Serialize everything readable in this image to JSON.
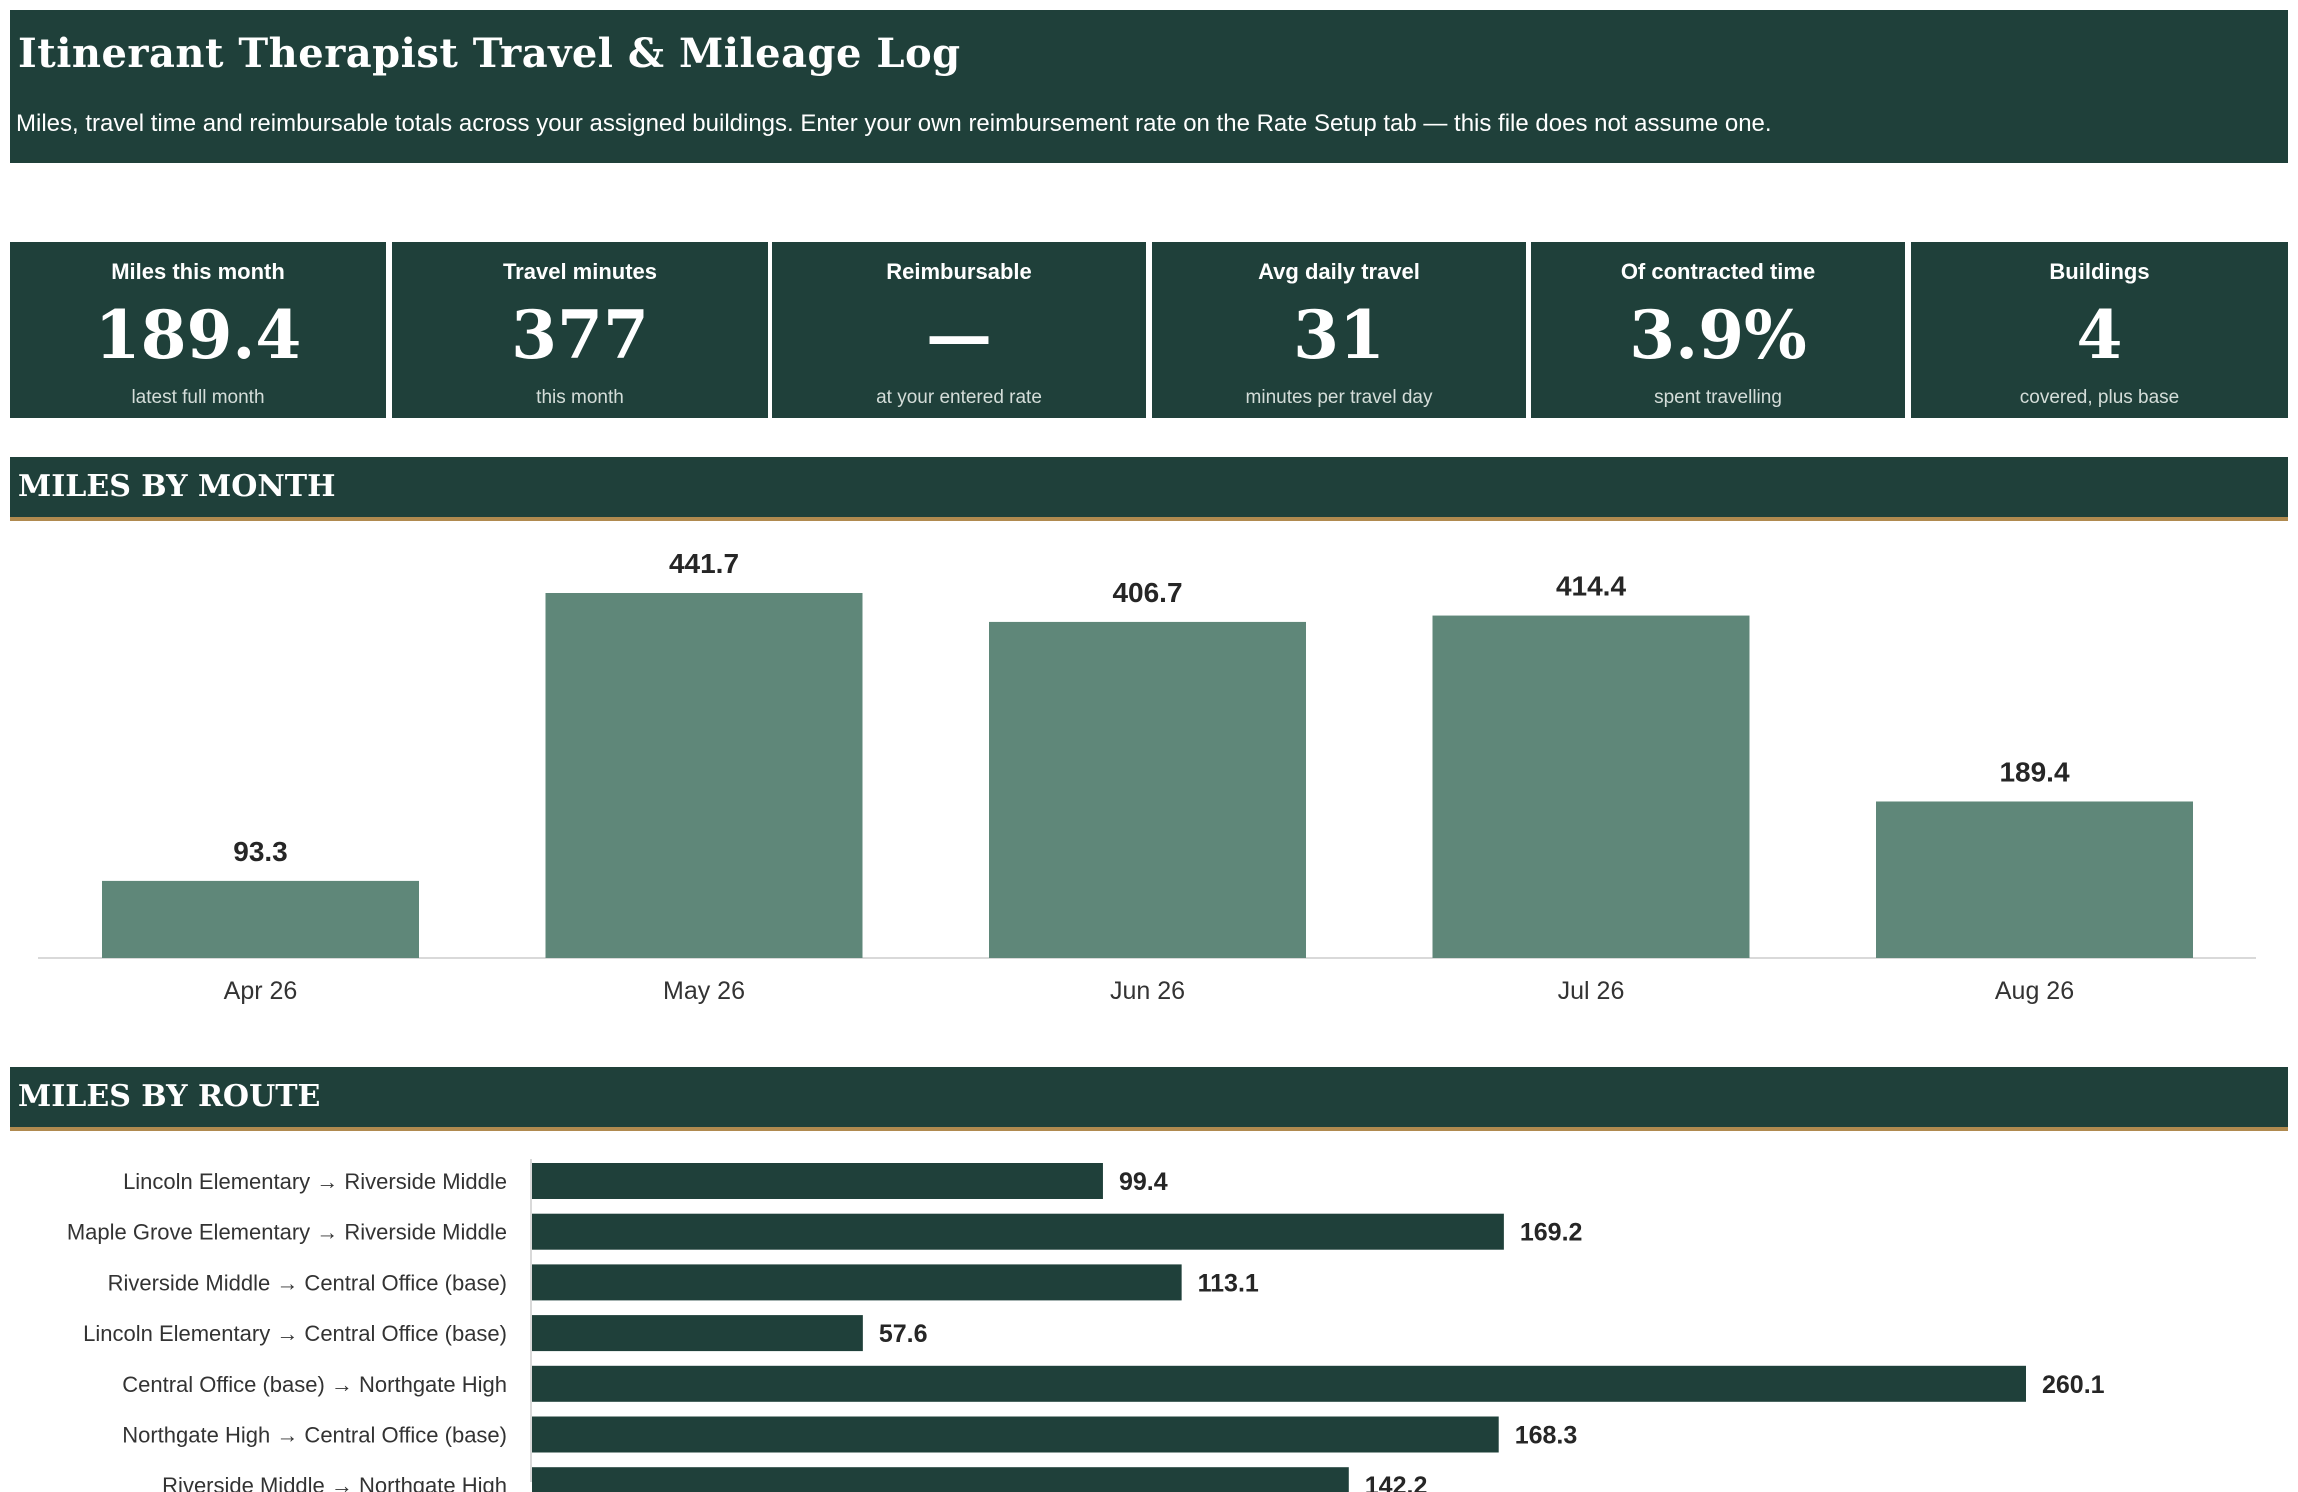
{
  "header": {
    "title": "Itinerant Therapist Travel & Mileage Log",
    "subtitle": "Miles, travel time and reimbursable totals across your assigned buildings. Enter your own reimbursement rate on the Rate Setup tab — this file does not assume one."
  },
  "kpis": [
    {
      "label": "Miles this month",
      "value": "189.4",
      "sub": "latest full month"
    },
    {
      "label": "Travel minutes",
      "value": "377",
      "sub": "this month"
    },
    {
      "label": "Reimbursable",
      "value": "—",
      "sub": "at your entered rate"
    },
    {
      "label": "Avg daily travel",
      "value": "31",
      "sub": "minutes per travel day"
    },
    {
      "label": "Of contracted time",
      "value": "3.9%",
      "sub": "spent travelling"
    },
    {
      "label": "Buildings",
      "value": "4",
      "sub": "covered, plus base"
    }
  ],
  "sections": {
    "month": "MILES BY MONTH",
    "route": "MILES BY ROUTE"
  },
  "colors": {
    "dark": "#1f403a",
    "bar_month": "#5f8779",
    "bar_route": "#1f403a",
    "accent": "#b08a4f"
  },
  "chart_data": [
    {
      "type": "bar",
      "categories": [
        "Apr 26",
        "May 26",
        "Jun 26",
        "Jul 26",
        "Aug 26"
      ],
      "values": [
        93.3,
        441.7,
        406.7,
        414.4,
        189.4
      ],
      "title": "MILES BY MONTH",
      "ylim": [
        0,
        441.7
      ],
      "grid": false
    },
    {
      "type": "bar",
      "orientation": "horizontal",
      "categories": [
        "Lincoln Elementary → Riverside Middle",
        "Maple Grove Elementary → Riverside Middle",
        "Riverside Middle → Central Office (base)",
        "Lincoln Elementary → Central Office (base)",
        "Central Office (base) → Northgate High",
        "Northgate High → Central Office (base)",
        "Riverside Middle → Northgate High"
      ],
      "values": [
        99.4,
        169.2,
        113.1,
        57.6,
        260.1,
        168.3,
        142.2
      ],
      "title": "MILES BY ROUTE",
      "xlim": [
        0,
        260.1
      ],
      "grid": false
    }
  ]
}
